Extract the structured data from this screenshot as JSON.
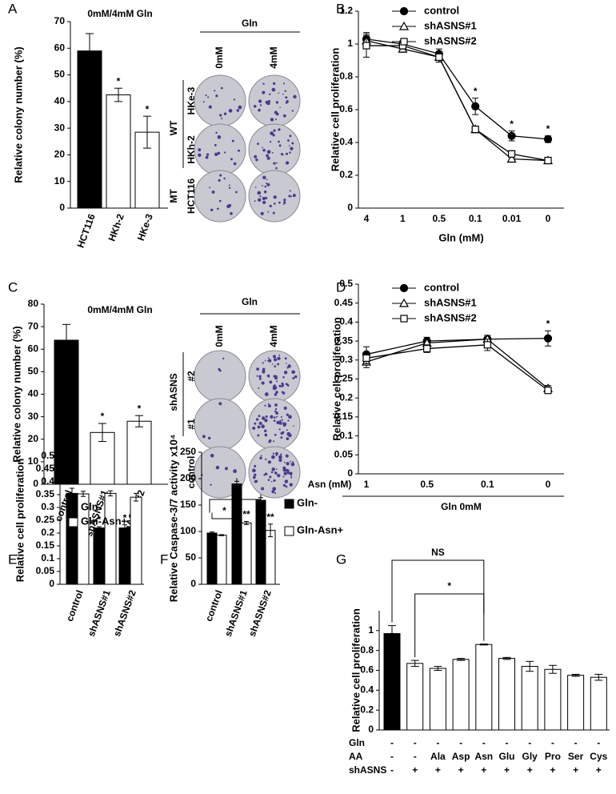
{
  "panel_labels": [
    "A",
    "B",
    "C",
    "D",
    "E",
    "F",
    "G"
  ],
  "colony_images": [
    {
      "header": "Gln",
      "columns": [
        "0mM",
        "4mM"
      ],
      "rows": [
        "HKe-3",
        "HKh-2",
        "HCT116"
      ],
      "groups": [
        "WT",
        "MT"
      ]
    },
    {
      "header": "Gln",
      "columns": [
        "0mM",
        "4mM"
      ],
      "rows": [
        "#2",
        "#1",
        "control"
      ],
      "groups": [
        "shASNS"
      ]
    }
  ],
  "chart_data": [
    {
      "type": "bar",
      "title": "0mM/4mM Gln",
      "y_label": "Relative colony number (%)",
      "categories": [
        "HCT116",
        "HKh-2",
        "HKe-3"
      ],
      "values": [
        59,
        42.5,
        28.5
      ],
      "errors": [
        6.5,
        2.5,
        6
      ],
      "colors": [
        "#000000",
        "#ffffff",
        "#ffffff"
      ],
      "stars": [
        null,
        "*",
        "*"
      ],
      "ylim": [
        0,
        70
      ],
      "yticks": [
        0,
        10,
        20,
        30,
        40,
        50,
        60,
        70
      ]
    },
    {
      "type": "line",
      "y_label": "Relative cell proliferation",
      "x_label": "Gln (mM)",
      "categories": [
        "4",
        "1",
        "0.5",
        "0.1",
        "0.01",
        "0"
      ],
      "series": [
        {
          "name": "control",
          "marker": "circle-filled",
          "values": [
            1.03,
            1.0,
            0.94,
            0.62,
            0.44,
            0.42
          ],
          "errors": [
            0.04,
            0.02,
            0.03,
            0.05,
            0.03,
            0.02
          ]
        },
        {
          "name": "shASNS#1",
          "marker": "triangle-open",
          "values": [
            1.02,
            0.97,
            0.92,
            0.48,
            0.3,
            0.29
          ],
          "errors": [
            0.03,
            0.02,
            0.03,
            0.02,
            0.02,
            0.01
          ]
        },
        {
          "name": "shASNS#2",
          "marker": "square-open",
          "values": [
            0.99,
            0.99,
            0.92,
            0.48,
            0.33,
            0.29
          ],
          "errors": [
            0.07,
            0.02,
            0.03,
            0.02,
            0.02,
            0.01
          ]
        }
      ],
      "stars": [
        null,
        null,
        null,
        "*",
        "*",
        "*"
      ],
      "ylim": [
        0,
        1.2
      ],
      "yticks": [
        0,
        0.2,
        0.4,
        0.6,
        0.8,
        1,
        1.2
      ]
    },
    {
      "type": "bar",
      "title": "0mM/4mM Gln",
      "y_label": "Relative colony number (%)",
      "categories": [
        "control",
        "shASNS#1",
        "shASNS#2"
      ],
      "values": [
        64,
        23,
        28
      ],
      "errors": [
        7,
        4,
        2.5
      ],
      "colors": [
        "#000000",
        "#ffffff",
        "#ffffff"
      ],
      "stars": [
        null,
        "*",
        "*"
      ],
      "ylim": [
        0,
        80
      ],
      "yticks": [
        0,
        10,
        20,
        30,
        40,
        50,
        60,
        70,
        80
      ]
    },
    {
      "type": "line",
      "y_label": "Relative cell proliferation",
      "x_label": "Asn (mM)",
      "x_sublabel": "Gln 0mM",
      "categories": [
        "1",
        "0.5",
        "0.1",
        "0"
      ],
      "series": [
        {
          "name": "control",
          "marker": "circle-filled",
          "values": [
            0.315,
            0.35,
            0.355,
            0.357
          ],
          "errors": [
            0.02,
            0.01,
            0.01,
            0.02
          ]
        },
        {
          "name": "shASNS#1",
          "marker": "triangle-open",
          "values": [
            0.295,
            0.345,
            0.355,
            0.225
          ],
          "errors": [
            0.015,
            0.01,
            0.01,
            0.008
          ]
        },
        {
          "name": "shASNS#2",
          "marker": "square-open",
          "values": [
            0.305,
            0.33,
            0.34,
            0.22
          ],
          "errors": [
            0.015,
            0.01,
            0.015,
            0.008
          ]
        }
      ],
      "stars": [
        null,
        null,
        null,
        "*"
      ],
      "ylim": [
        0,
        0.5
      ],
      "yticks": [
        0,
        0.05,
        0.1,
        0.15,
        0.2,
        0.25,
        0.3,
        0.35,
        0.4,
        0.45,
        0.5
      ]
    },
    {
      "type": "bar",
      "y_label": "Relative cell proliferation",
      "categories": [
        "control",
        "shASNS#1",
        "shASNS#2"
      ],
      "series": [
        {
          "name": "Gln-",
          "color": "#000000",
          "values": [
            0.355,
            0.22,
            0.22
          ],
          "errors": [
            0.02,
            0.005,
            0.012
          ],
          "stars": [
            null,
            "*",
            "*"
          ]
        },
        {
          "name": "Gln-Asn+",
          "color": "#ffffff",
          "values": [
            0.353,
            0.355,
            0.34
          ],
          "errors": [
            0.01,
            0.01,
            0.015
          ]
        }
      ],
      "ylim": [
        0,
        0.5
      ],
      "yticks": [
        0,
        0.05,
        0.1,
        0.15,
        0.2,
        0.25,
        0.3,
        0.35,
        0.4,
        0.45,
        0.5
      ]
    },
    {
      "type": "bar",
      "y_label": "Relative Caspase-3/7 activity x10⁴",
      "categories": [
        "control",
        "shASNS#1",
        "shASNS#2"
      ],
      "series": [
        {
          "name": "Gln-",
          "color": "#000000",
          "values": [
            97,
            190,
            159
          ],
          "errors": [
            2,
            5,
            5
          ]
        },
        {
          "name": "Gln-Asn+",
          "color": "#ffffff",
          "values": [
            93,
            116,
            102
          ],
          "errors": [
            1,
            3,
            12
          ],
          "stars": [
            null,
            "**",
            "**"
          ]
        }
      ],
      "brackets": [
        "*",
        "*"
      ],
      "ylim": [
        0,
        250
      ],
      "yticks": [
        0,
        50,
        100,
        150,
        200,
        250
      ]
    },
    {
      "type": "bar",
      "y_label": "Relative cell proliferation",
      "values": [
        0.97,
        0.67,
        0.62,
        0.71,
        0.86,
        0.72,
        0.64,
        0.61,
        0.55,
        0.53
      ],
      "errors": [
        0.08,
        0.03,
        0.02,
        0.01,
        0.005,
        0.01,
        0.05,
        0.04,
        0.01,
        0.03
      ],
      "colors": [
        "#000000",
        "#ffffff",
        "#ffffff",
        "#ffffff",
        "#ffffff",
        "#ffffff",
        "#ffffff",
        "#ffffff",
        "#ffffff",
        "#ffffff"
      ],
      "table_rows": [
        {
          "label": "Gln",
          "cells": [
            "-",
            "-",
            "-",
            "-",
            "-",
            "-",
            "-",
            "-",
            "-",
            "-"
          ]
        },
        {
          "label": "AA",
          "cells": [
            "-",
            "-",
            "Ala",
            "Asp",
            "Asn",
            "Glu",
            "Gly",
            "Pro",
            "Ser",
            "Cys"
          ]
        },
        {
          "label": "shASNS",
          "cells": [
            "-",
            "+",
            "+",
            "+",
            "+",
            "+",
            "+",
            "+",
            "+",
            "+"
          ]
        }
      ],
      "brackets": [
        "NS",
        "*"
      ],
      "ylim": [
        0,
        1.2
      ],
      "yticks": [
        0,
        0.2,
        0.4,
        0.6,
        0.8,
        1
      ]
    }
  ]
}
